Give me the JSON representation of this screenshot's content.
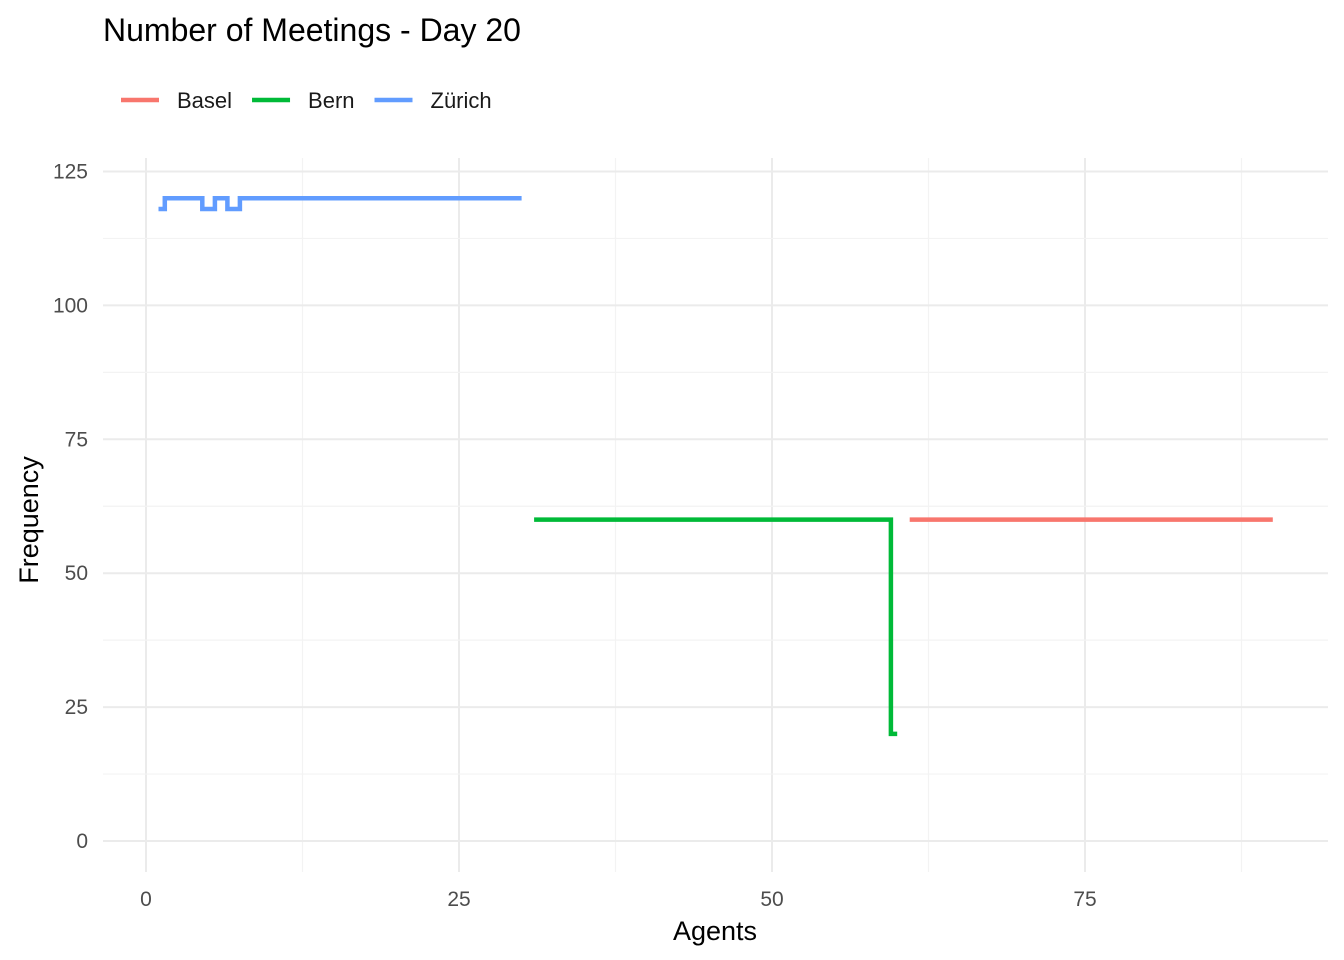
{
  "chart_data": {
    "type": "line",
    "title": "Number of Meetings - Day 20",
    "xlabel": "Agents",
    "ylabel": "Frequency",
    "xlim": [
      0,
      90
    ],
    "ylim": [
      0,
      125
    ],
    "x_ticks": [
      0,
      25,
      50,
      75
    ],
    "x_tick_labels": [
      "0",
      "25",
      "50",
      "75"
    ],
    "y_ticks": [
      0,
      25,
      50,
      75,
      100,
      125
    ],
    "y_tick_labels": [
      "0",
      "25",
      "50",
      "75",
      "100",
      "125"
    ],
    "grid": true,
    "legend_position": "top-left",
    "step": true,
    "series": [
      {
        "name": "Basel",
        "color": "#F8766D",
        "points": [
          [
            61,
            60
          ],
          [
            90,
            60
          ]
        ]
      },
      {
        "name": "Bern",
        "color": "#00BA38",
        "points": [
          [
            31,
            60
          ],
          [
            59.5,
            60
          ],
          [
            59.5,
            20
          ],
          [
            60,
            20
          ]
        ]
      },
      {
        "name": "Zürich",
        "color": "#619CFF",
        "points": [
          [
            1,
            118
          ],
          [
            1.5,
            118
          ],
          [
            1.5,
            120
          ],
          [
            4.5,
            120
          ],
          [
            4.5,
            118
          ],
          [
            5.5,
            118
          ],
          [
            5.5,
            120
          ],
          [
            6.5,
            120
          ],
          [
            6.5,
            118
          ],
          [
            7.5,
            118
          ],
          [
            7.5,
            120
          ],
          [
            30,
            120
          ]
        ]
      }
    ]
  }
}
